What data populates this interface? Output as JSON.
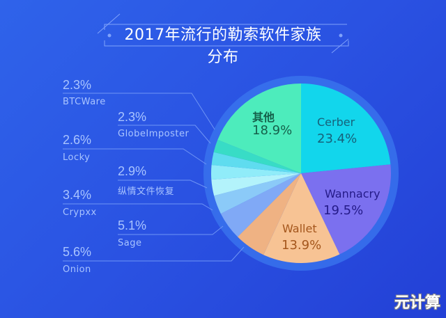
{
  "chart_data": {
    "type": "pie",
    "title": "2017年流行的勒索软件家族分布",
    "start_angle_deg": -90,
    "direction": "clockwise",
    "slices": [
      {
        "label": "Cerber",
        "value": 23.4,
        "pct": "23.4%",
        "color": "#12d6ec"
      },
      {
        "label": "Wannacry",
        "value": 19.5,
        "pct": "19.5%",
        "color": "#7b70ef"
      },
      {
        "label": "Wallet",
        "value": 13.9,
        "pct": "13.9%",
        "color": "#f7c394"
      },
      {
        "label": "Onion",
        "value": 5.6,
        "pct": "5.6%",
        "color": "#efb283"
      },
      {
        "label": "Sage",
        "value": 5.1,
        "pct": "5.1%",
        "color": "#80a9f6"
      },
      {
        "label": "Crypxx",
        "value": 3.4,
        "pct": "3.4%",
        "color": "#8bcaf8"
      },
      {
        "label": "纵情文件恢复",
        "value": 2.9,
        "pct": "2.9%",
        "color": "#b3f3fb"
      },
      {
        "label": "Locky",
        "value": 2.6,
        "pct": "2.6%",
        "color": "#90ecf9"
      },
      {
        "label": "GlobeImposter",
        "value": 2.3,
        "pct": "2.3%",
        "color": "#5fdcef"
      },
      {
        "label": "BTCWare",
        "value": 2.3,
        "pct": "2.3%",
        "color": "#38dcc6"
      },
      {
        "label": "其他",
        "value": 18.9,
        "pct": "18.9%",
        "color": "#4decbc"
      }
    ]
  },
  "colors": {
    "ring": "#3a74ee",
    "leader": "#6f95f5"
  },
  "watermark": "元计算"
}
